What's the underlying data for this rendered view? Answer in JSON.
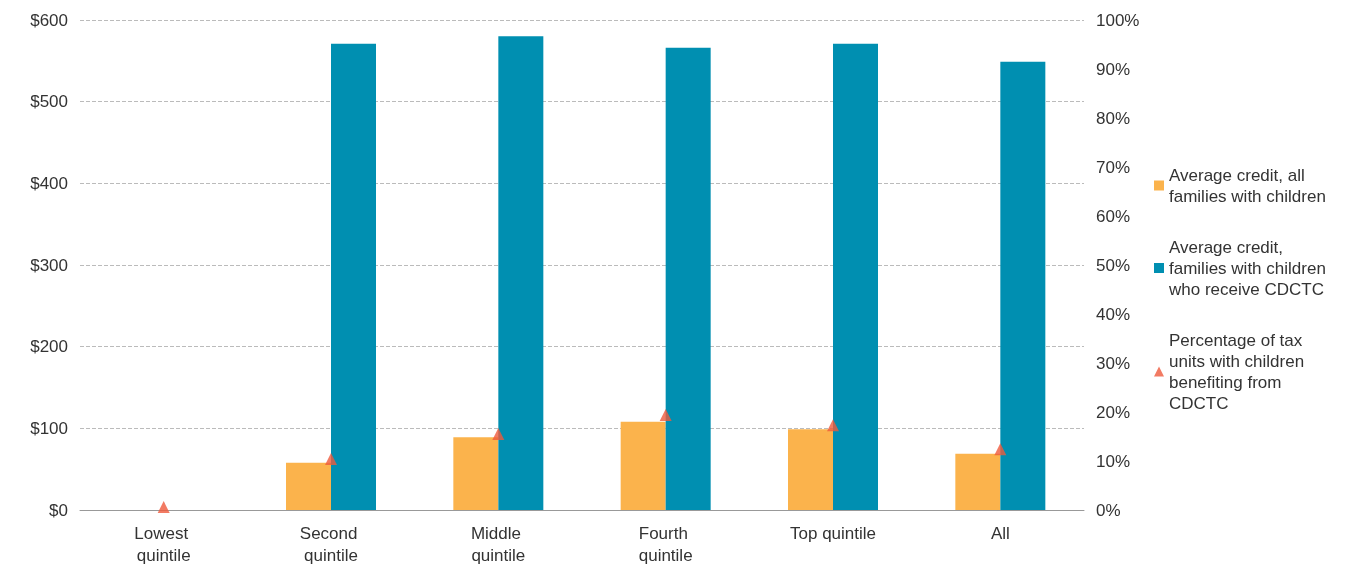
{
  "chart_data": {
    "type": "bar",
    "categories": [
      "Lowest quintile",
      "Second quintile",
      "Middle quintile",
      "Fourth quintile",
      "Top quintile",
      "All"
    ],
    "series": [
      {
        "name": "Average credit, all families with children",
        "color": "#fbb34c",
        "values": [
          0,
          58,
          89,
          108,
          99,
          69
        ]
      },
      {
        "name": "Average credit, families with children who receive CDCTC",
        "color": "#008fb1",
        "values": [
          0,
          571,
          580,
          566,
          571,
          549
        ]
      },
      {
        "name": "Percentage of tax units with children benefiting from CDCTC",
        "type": "scatter",
        "axis": "y2",
        "color": "#ef5a3c",
        "marker": "triangle",
        "values": [
          0.6,
          10.4,
          15.5,
          19.4,
          17.3,
          12.4
        ]
      }
    ],
    "ylim": [
      0,
      600
    ],
    "yticks": [
      {
        "value": 0,
        "label": "$0"
      },
      {
        "value": 100,
        "label": "$100"
      },
      {
        "value": 200,
        "label": "$200"
      },
      {
        "value": 300,
        "label": "$300"
      },
      {
        "value": 400,
        "label": "$400"
      },
      {
        "value": 500,
        "label": "$500"
      },
      {
        "value": 600,
        "label": "$600"
      }
    ],
    "y2lim": [
      0,
      100
    ],
    "y2ticks": [
      {
        "value": 0,
        "label": "0%"
      },
      {
        "value": 10,
        "label": "10%"
      },
      {
        "value": 20,
        "label": "20%"
      },
      {
        "value": 30,
        "label": "30%"
      },
      {
        "value": 40,
        "label": "40%"
      },
      {
        "value": 50,
        "label": "50%"
      },
      {
        "value": 60,
        "label": "60%"
      },
      {
        "value": 70,
        "label": "70%"
      },
      {
        "value": 80,
        "label": "80%"
      },
      {
        "value": 90,
        "label": "90%"
      },
      {
        "value": 100,
        "label": "100%"
      }
    ],
    "grid": "y",
    "legend": "right"
  }
}
